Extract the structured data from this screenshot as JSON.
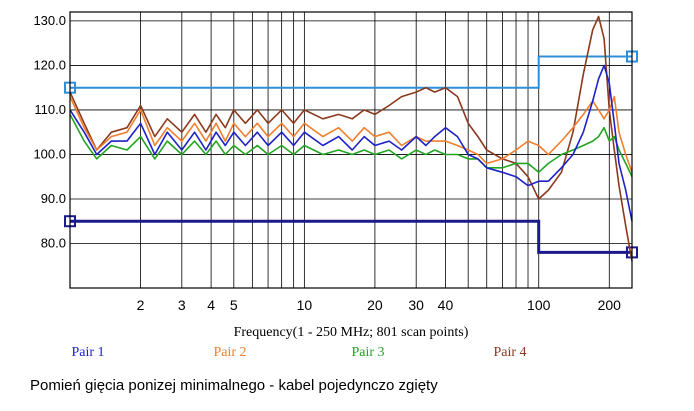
{
  "chart_data": {
    "type": "line",
    "xlabel": "Frequency(1 - 250 MHz; 801 scan points)",
    "x_scale": "log",
    "xlim": [
      1,
      250
    ],
    "ylim": [
      70,
      132
    ],
    "y_ticks": [
      {
        "value": 130,
        "label": "130.0"
      },
      {
        "value": 120,
        "label": "120.0"
      },
      {
        "value": 110,
        "label": "110.0"
      },
      {
        "value": 100,
        "label": "100.0"
      },
      {
        "value": 90,
        "label": "90.0"
      },
      {
        "value": 80,
        "label": "80.0"
      }
    ],
    "x_ticks": [
      {
        "value": 2,
        "label": "2"
      },
      {
        "value": 3,
        "label": "3"
      },
      {
        "value": 4,
        "label": "4"
      },
      {
        "value": 5,
        "label": "5"
      },
      {
        "value": 10,
        "label": "10"
      },
      {
        "value": 20,
        "label": "20"
      },
      {
        "value": 30,
        "label": "30"
      },
      {
        "value": 40,
        "label": "40"
      },
      {
        "value": 100,
        "label": "100"
      },
      {
        "value": 200,
        "label": "200"
      }
    ],
    "grid": true,
    "legend_position": "bottom",
    "limit_lines": [
      {
        "color": "#2e8fd8",
        "x": [
          1,
          100,
          100,
          250
        ],
        "y": [
          115,
          115,
          122,
          122
        ]
      },
      {
        "color": "#1a1a8c",
        "x": [
          1,
          100,
          100,
          250
        ],
        "y": [
          85,
          85,
          78,
          78
        ]
      }
    ],
    "series": [
      {
        "name": "Pair 1",
        "color": "#1e22c8",
        "x": [
          1,
          1.15,
          1.3,
          1.5,
          1.75,
          2,
          2.3,
          2.6,
          3,
          3.4,
          3.8,
          4.2,
          4.6,
          5,
          5.6,
          6.3,
          7,
          8,
          9,
          10,
          12,
          14,
          16,
          18,
          20,
          23,
          26,
          30,
          33,
          36,
          40,
          45,
          50,
          55,
          60,
          70,
          80,
          90,
          100,
          110,
          125,
          140,
          155,
          170,
          180,
          190,
          200,
          210,
          220,
          235,
          250
        ],
        "y": [
          110,
          105,
          100,
          103,
          103,
          107,
          100,
          105,
          101,
          105,
          101,
          105,
          102,
          105,
          102,
          105,
          102,
          105,
          102,
          105,
          102,
          104,
          101,
          104,
          102,
          103,
          101,
          104,
          102,
          104,
          106,
          104,
          100,
          99,
          97,
          96,
          95,
          93,
          94,
          94,
          97,
          100,
          105,
          112,
          117,
          120,
          116,
          107,
          98,
          92,
          85
        ]
      },
      {
        "name": "Pair 2",
        "color": "#f07f2e",
        "x": [
          1,
          1.15,
          1.3,
          1.5,
          1.75,
          2,
          2.3,
          2.6,
          3,
          3.4,
          3.8,
          4.2,
          4.6,
          5,
          5.6,
          6.3,
          7,
          8,
          9,
          10,
          12,
          14,
          16,
          18,
          20,
          23,
          26,
          30,
          33,
          36,
          40,
          45,
          50,
          55,
          60,
          70,
          80,
          90,
          100,
          110,
          125,
          140,
          155,
          170,
          180,
          190,
          200,
          210,
          220,
          235,
          250
        ],
        "y": [
          113,
          106,
          101,
          104,
          105,
          110,
          102,
          106,
          103,
          107,
          103,
          107,
          103,
          107,
          104,
          107,
          104,
          107,
          104,
          107,
          104,
          106,
          103,
          106,
          104,
          105,
          102,
          104,
          103,
          103,
          103,
          102,
          101,
          100,
          98,
          99,
          101,
          103,
          102,
          100,
          103,
          106,
          109,
          112,
          110,
          108,
          110,
          113,
          105,
          100,
          96
        ]
      },
      {
        "name": "Pair 3",
        "color": "#22a522",
        "x": [
          1,
          1.15,
          1.3,
          1.5,
          1.75,
          2,
          2.3,
          2.6,
          3,
          3.4,
          3.8,
          4.2,
          4.6,
          5,
          5.6,
          6.3,
          7,
          8,
          9,
          10,
          12,
          14,
          16,
          18,
          20,
          23,
          26,
          30,
          33,
          36,
          40,
          45,
          50,
          55,
          60,
          70,
          80,
          90,
          100,
          110,
          125,
          140,
          155,
          170,
          180,
          190,
          200,
          210,
          220,
          235,
          250
        ],
        "y": [
          109,
          103,
          99,
          102,
          101,
          104,
          99,
          103,
          100,
          103,
          100,
          103,
          100,
          102,
          100,
          102,
          100,
          102,
          100,
          102,
          100,
          101,
          100,
          101,
          100,
          101,
          99,
          101,
          100,
          101,
          100,
          100,
          99,
          99,
          97,
          97,
          98,
          98,
          96,
          98,
          100,
          101,
          102,
          103,
          104,
          106,
          103,
          104,
          101,
          98,
          95
        ]
      },
      {
        "name": "Pair 4",
        "color": "#8b3a1e",
        "x": [
          1,
          1.15,
          1.3,
          1.5,
          1.75,
          2,
          2.3,
          2.6,
          3,
          3.4,
          3.8,
          4.2,
          4.6,
          5,
          5.6,
          6.3,
          7,
          8,
          9,
          10,
          12,
          14,
          16,
          18,
          20,
          23,
          26,
          30,
          33,
          36,
          40,
          45,
          50,
          55,
          60,
          70,
          80,
          90,
          100,
          110,
          125,
          140,
          155,
          170,
          180,
          190,
          200,
          210,
          220,
          235,
          250
        ],
        "y": [
          114,
          107,
          101,
          105,
          106,
          111,
          104,
          108,
          105,
          109,
          105,
          109,
          106,
          110,
          107,
          110,
          107,
          110,
          107,
          110,
          108,
          109,
          108,
          110,
          109,
          111,
          113,
          114,
          115,
          114,
          115,
          113,
          107,
          104,
          101,
          99,
          98,
          95,
          90,
          92,
          96,
          105,
          118,
          128,
          131,
          126,
          110,
          101,
          93,
          84,
          76
        ]
      }
    ]
  },
  "caption": "Pomień gięcia ponizej minimalnego - kabel pojedynczo zgięty"
}
